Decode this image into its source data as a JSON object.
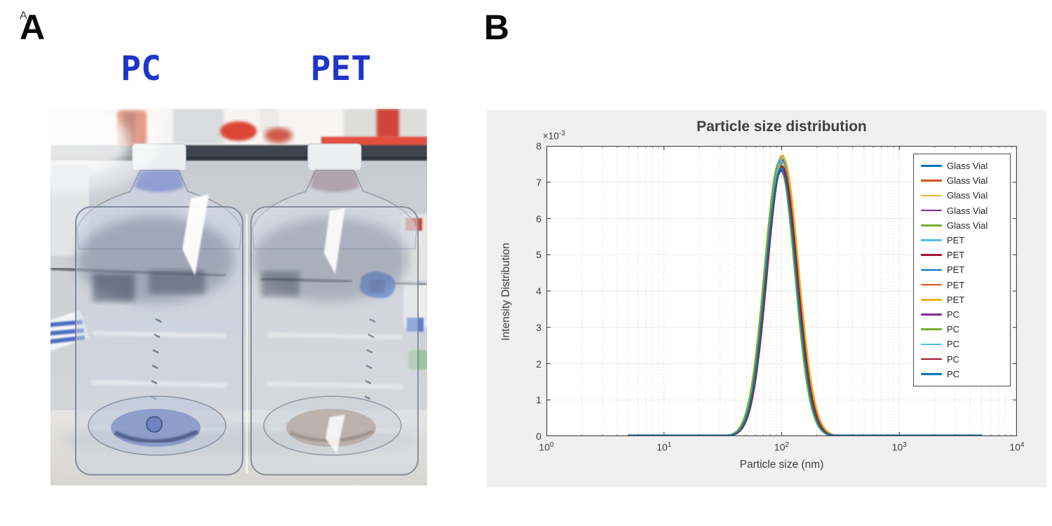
{
  "panelA": {
    "label": "A",
    "bottle_labels": [
      "PC",
      "PET"
    ],
    "label_color": "#1d36c9",
    "photo_alt": "Two clear plastic carboy bottles with white screw caps standing side by side on a laboratory bench"
  },
  "panelB": {
    "label": "B"
  },
  "chart_data": {
    "type": "line",
    "title": "Particle size distribution",
    "xlabel": "Particle size (nm)",
    "ylabel": "Intensity Distribution",
    "x_scale": "log",
    "xlim_nm": [
      1,
      10000
    ],
    "ylim": [
      0,
      0.008
    ],
    "y_exponent_label": {
      "base": "×10",
      "exp": "-3"
    },
    "x_ticks": [
      {
        "base": "10",
        "exp": "0"
      },
      {
        "base": "10",
        "exp": "1"
      },
      {
        "base": "10",
        "exp": "2"
      },
      {
        "base": "10",
        "exp": "3"
      },
      {
        "base": "10",
        "exp": "4"
      }
    ],
    "y_ticks": [
      "8",
      "7",
      "6",
      "5",
      "4",
      "3",
      "2",
      "1",
      "0"
    ],
    "grid": true,
    "minor_grid": true,
    "legend_position": "top-right",
    "curve_shape": "lognormal peak near 100 nm, zero-baseline from 5 nm to ~40 nm and ~420 nm to 5000 nm",
    "series": [
      {
        "name": "Glass Vial",
        "color": "#0072BD",
        "peak_intensity": 0.00746,
        "peak_nm": 97,
        "sigma_log10": 0.127,
        "x_start_nm": 5,
        "x_end_nm": 5000
      },
      {
        "name": "Glass Vial",
        "color": "#D95319",
        "peak_intensity": 0.00764,
        "peak_nm": 100,
        "sigma_log10": 0.128,
        "x_start_nm": 5,
        "x_end_nm": 5000
      },
      {
        "name": "Glass Vial",
        "color": "#EDB120",
        "peak_intensity": 0.00775,
        "peak_nm": 101,
        "sigma_log10": 0.131,
        "x_start_nm": 5,
        "x_end_nm": 5000
      },
      {
        "name": "Glass Vial",
        "color": "#7E2F8E",
        "peak_intensity": 0.00731,
        "peak_nm": 99,
        "sigma_log10": 0.127,
        "x_start_nm": 5,
        "x_end_nm": 5000
      },
      {
        "name": "Glass Vial",
        "color": "#77AC30",
        "peak_intensity": 0.00757,
        "peak_nm": 96,
        "sigma_log10": 0.129,
        "x_start_nm": 5,
        "x_end_nm": 5000
      },
      {
        "name": "PET",
        "color": "#4DBEEE",
        "peak_intensity": 0.0077,
        "peak_nm": 100,
        "sigma_log10": 0.128,
        "x_start_nm": 5,
        "x_end_nm": 5000
      },
      {
        "name": "PET",
        "color": "#A2142F",
        "peak_intensity": 0.00762,
        "peak_nm": 100,
        "sigma_log10": 0.127,
        "x_start_nm": 5,
        "x_end_nm": 5000
      },
      {
        "name": "PET",
        "color": "#0072BD",
        "peak_intensity": 0.00741,
        "peak_nm": 99,
        "sigma_log10": 0.126,
        "x_start_nm": 5,
        "x_end_nm": 5000
      },
      {
        "name": "PET",
        "color": "#D95319",
        "peak_intensity": 0.00755,
        "peak_nm": 102,
        "sigma_log10": 0.129,
        "x_start_nm": 5,
        "x_end_nm": 5000
      },
      {
        "name": "PET",
        "color": "#EDB120",
        "peak_intensity": 0.00768,
        "peak_nm": 103,
        "sigma_log10": 0.132,
        "x_start_nm": 5,
        "x_end_nm": 5000
      },
      {
        "name": "PC",
        "color": "#7E2F8E",
        "peak_intensity": 0.00734,
        "peak_nm": 98,
        "sigma_log10": 0.127,
        "x_start_nm": 5,
        "x_end_nm": 5000
      },
      {
        "name": "PC",
        "color": "#77AC30",
        "peak_intensity": 0.0075,
        "peak_nm": 96,
        "sigma_log10": 0.128,
        "x_start_nm": 5,
        "x_end_nm": 5000
      },
      {
        "name": "PC",
        "color": "#4DBEEE",
        "peak_intensity": 0.00759,
        "peak_nm": 100,
        "sigma_log10": 0.127,
        "x_start_nm": 5,
        "x_end_nm": 5000
      },
      {
        "name": "PC",
        "color": "#A2142F",
        "peak_intensity": 0.00744,
        "peak_nm": 101,
        "sigma_log10": 0.128,
        "x_start_nm": 5,
        "x_end_nm": 5000
      },
      {
        "name": "PC",
        "color": "#0072BD",
        "peak_intensity": 0.00738,
        "peak_nm": 99,
        "sigma_log10": 0.128,
        "x_start_nm": 5,
        "x_end_nm": 5000
      }
    ],
    "palette": {
      "figure_background": "#f0f0f0",
      "axes_background": "#ffffff",
      "axis_color": "#4d4d4d",
      "title_color": "#3f3f3f",
      "grid_major": "#e8e8e8",
      "grid_minor_dotted": "#d6d6d6"
    }
  }
}
